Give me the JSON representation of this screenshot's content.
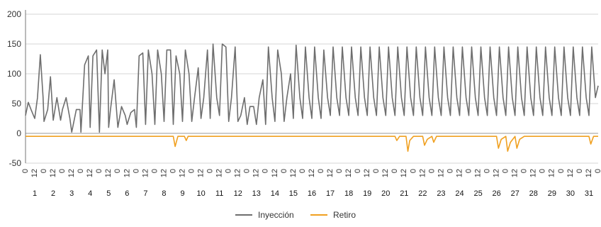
{
  "chart_data": {
    "type": "line",
    "title": "",
    "xlabel": "",
    "ylabel": "",
    "ylim": [
      -50,
      200
    ],
    "y_ticks": [
      200,
      150,
      100,
      50,
      0,
      -50
    ],
    "grid": "horizontal",
    "hour_labels": [
      "0",
      "12"
    ],
    "days": [
      1,
      2,
      3,
      4,
      5,
      6,
      7,
      8,
      9,
      10,
      11,
      12,
      13,
      14,
      15,
      16,
      17,
      18,
      19,
      20,
      21,
      22,
      23,
      24,
      25,
      26,
      27,
      28,
      29,
      30,
      31
    ],
    "day_labels": [
      "1",
      "2",
      "3",
      "4",
      "5",
      "6",
      "7",
      "8",
      "9",
      "10",
      "11",
      "12",
      "13",
      "14",
      "15",
      "16",
      "17",
      "18",
      "19",
      "20",
      "21",
      "22",
      "23",
      "24",
      "25",
      "26",
      "27",
      "28",
      "29",
      "30",
      "31"
    ],
    "legend_position": "bottom-center",
    "series": [
      {
        "name": "Inyección",
        "color": "#6e6e6e",
        "x_unit": "half-day index",
        "points": [
          [
            0,
            30
          ],
          [
            0.3,
            52
          ],
          [
            0.6,
            40
          ],
          [
            1,
            25
          ],
          [
            1.3,
            60
          ],
          [
            1.6,
            132
          ],
          [
            1.9,
            60
          ],
          [
            2,
            20
          ],
          [
            2.4,
            40
          ],
          [
            2.7,
            95
          ],
          [
            3,
            22
          ],
          [
            3.4,
            60
          ],
          [
            3.8,
            22
          ],
          [
            4,
            40
          ],
          [
            4.4,
            60
          ],
          [
            4.8,
            25
          ],
          [
            5,
            2
          ],
          [
            5.5,
            40
          ],
          [
            5.9,
            40
          ],
          [
            6,
            2
          ],
          [
            6.4,
            115
          ],
          [
            6.8,
            130
          ],
          [
            7,
            10
          ],
          [
            7.3,
            130
          ],
          [
            7.7,
            140
          ],
          [
            8,
            2
          ],
          [
            8.3,
            140
          ],
          [
            8.6,
            100
          ],
          [
            8.9,
            140
          ],
          [
            9,
            10
          ],
          [
            9.2,
            40
          ],
          [
            9.6,
            90
          ],
          [
            10,
            10
          ],
          [
            10.4,
            45
          ],
          [
            10.8,
            30
          ],
          [
            11,
            15
          ],
          [
            11.4,
            35
          ],
          [
            11.8,
            40
          ],
          [
            12,
            10
          ],
          [
            12.3,
            130
          ],
          [
            12.7,
            135
          ],
          [
            13,
            15
          ],
          [
            13.3,
            140
          ],
          [
            13.7,
            100
          ],
          [
            14,
            15
          ],
          [
            14.3,
            140
          ],
          [
            14.7,
            100
          ],
          [
            15,
            20
          ],
          [
            15.3,
            140
          ],
          [
            15.7,
            140
          ],
          [
            16,
            15
          ],
          [
            16.3,
            130
          ],
          [
            16.7,
            100
          ],
          [
            17,
            20
          ],
          [
            17.3,
            140
          ],
          [
            17.7,
            100
          ],
          [
            18,
            20
          ],
          [
            18.3,
            60
          ],
          [
            18.7,
            110
          ],
          [
            19,
            25
          ],
          [
            19.3,
            60
          ],
          [
            19.7,
            140
          ],
          [
            20,
            25
          ],
          [
            20.3,
            150
          ],
          [
            20.7,
            60
          ],
          [
            21,
            30
          ],
          [
            21.3,
            150
          ],
          [
            21.7,
            145
          ],
          [
            22,
            20
          ],
          [
            22.3,
            60
          ],
          [
            22.7,
            145
          ],
          [
            23,
            20
          ],
          [
            23.3,
            30
          ],
          [
            23.7,
            60
          ],
          [
            24,
            15
          ],
          [
            24.3,
            45
          ],
          [
            24.7,
            45
          ],
          [
            25,
            15
          ],
          [
            25.3,
            60
          ],
          [
            25.7,
            90
          ],
          [
            26,
            15
          ],
          [
            26.3,
            145
          ],
          [
            26.7,
            60
          ],
          [
            27,
            20
          ],
          [
            27.3,
            140
          ],
          [
            27.7,
            100
          ],
          [
            28,
            20
          ],
          [
            28.3,
            60
          ],
          [
            28.7,
            100
          ],
          [
            29,
            25
          ],
          [
            29.3,
            148
          ],
          [
            29.7,
            60
          ],
          [
            30,
            25
          ],
          [
            30.3,
            145
          ],
          [
            30.7,
            60
          ],
          [
            31,
            25
          ],
          [
            31.3,
            145
          ],
          [
            31.7,
            60
          ],
          [
            32,
            25
          ],
          [
            32.3,
            140
          ],
          [
            32.7,
            60
          ],
          [
            33,
            30
          ],
          [
            33.3,
            145
          ],
          [
            33.7,
            60
          ],
          [
            34,
            30
          ],
          [
            34.3,
            145
          ],
          [
            34.7,
            60
          ],
          [
            35,
            30
          ],
          [
            35.3,
            145
          ],
          [
            35.7,
            60
          ],
          [
            36,
            30
          ],
          [
            36.3,
            145
          ],
          [
            36.7,
            60
          ],
          [
            37,
            30
          ],
          [
            37.3,
            145
          ],
          [
            37.7,
            60
          ],
          [
            38,
            30
          ],
          [
            38.3,
            145
          ],
          [
            38.7,
            60
          ],
          [
            39,
            30
          ],
          [
            39.3,
            145
          ],
          [
            39.7,
            60
          ],
          [
            40,
            30
          ],
          [
            40.3,
            145
          ],
          [
            40.7,
            60
          ],
          [
            41,
            30
          ],
          [
            41.3,
            145
          ],
          [
            41.7,
            60
          ],
          [
            42,
            30
          ],
          [
            42.3,
            145
          ],
          [
            42.7,
            60
          ],
          [
            43,
            30
          ],
          [
            43.3,
            145
          ],
          [
            43.7,
            60
          ],
          [
            44,
            30
          ],
          [
            44.3,
            145
          ],
          [
            44.7,
            60
          ],
          [
            45,
            30
          ],
          [
            45.3,
            145
          ],
          [
            45.7,
            60
          ],
          [
            46,
            30
          ],
          [
            46.3,
            145
          ],
          [
            46.7,
            60
          ],
          [
            47,
            30
          ],
          [
            47.3,
            145
          ],
          [
            47.7,
            60
          ],
          [
            48,
            30
          ],
          [
            48.3,
            145
          ],
          [
            48.7,
            60
          ],
          [
            49,
            30
          ],
          [
            49.3,
            145
          ],
          [
            49.7,
            60
          ],
          [
            50,
            30
          ],
          [
            50.3,
            145
          ],
          [
            50.7,
            60
          ],
          [
            51,
            30
          ],
          [
            51.3,
            145
          ],
          [
            51.7,
            60
          ],
          [
            52,
            30
          ],
          [
            52.3,
            145
          ],
          [
            52.7,
            60
          ],
          [
            53,
            30
          ],
          [
            53.3,
            145
          ],
          [
            53.7,
            60
          ],
          [
            54,
            30
          ],
          [
            54.3,
            145
          ],
          [
            54.7,
            60
          ],
          [
            55,
            30
          ],
          [
            55.3,
            145
          ],
          [
            55.7,
            60
          ],
          [
            56,
            30
          ],
          [
            56.3,
            145
          ],
          [
            56.7,
            60
          ],
          [
            57,
            30
          ],
          [
            57.3,
            145
          ],
          [
            57.7,
            60
          ],
          [
            58,
            30
          ],
          [
            58.3,
            145
          ],
          [
            58.7,
            60
          ],
          [
            59,
            30
          ],
          [
            59.3,
            145
          ],
          [
            59.7,
            60
          ],
          [
            60,
            30
          ],
          [
            60.3,
            145
          ],
          [
            60.7,
            60
          ],
          [
            61,
            30
          ],
          [
            61.3,
            145
          ],
          [
            61.7,
            60
          ],
          [
            62,
            80
          ]
        ]
      },
      {
        "name": "Retiro",
        "color": "#f0a020",
        "x_unit": "half-day index",
        "points": [
          [
            0,
            -5
          ],
          [
            16,
            -5
          ],
          [
            16.2,
            -22
          ],
          [
            16.5,
            -5
          ],
          [
            17.2,
            -5
          ],
          [
            17.4,
            -12
          ],
          [
            17.6,
            -5
          ],
          [
            40,
            -5
          ],
          [
            40.2,
            -12
          ],
          [
            40.5,
            -5
          ],
          [
            41.2,
            -5
          ],
          [
            41.4,
            -30
          ],
          [
            41.6,
            -12
          ],
          [
            42,
            -5
          ],
          [
            43,
            -5
          ],
          [
            43.2,
            -20
          ],
          [
            43.5,
            -10
          ],
          [
            44,
            -5
          ],
          [
            44.2,
            -15
          ],
          [
            44.5,
            -5
          ],
          [
            51,
            -5
          ],
          [
            51.2,
            -25
          ],
          [
            51.5,
            -10
          ],
          [
            52,
            -5
          ],
          [
            52.2,
            -30
          ],
          [
            52.5,
            -15
          ],
          [
            53,
            -5
          ],
          [
            53.2,
            -25
          ],
          [
            53.5,
            -10
          ],
          [
            54,
            -5
          ],
          [
            61,
            -5
          ],
          [
            61.2,
            -18
          ],
          [
            61.5,
            -5
          ],
          [
            62,
            -5
          ]
        ]
      }
    ]
  }
}
